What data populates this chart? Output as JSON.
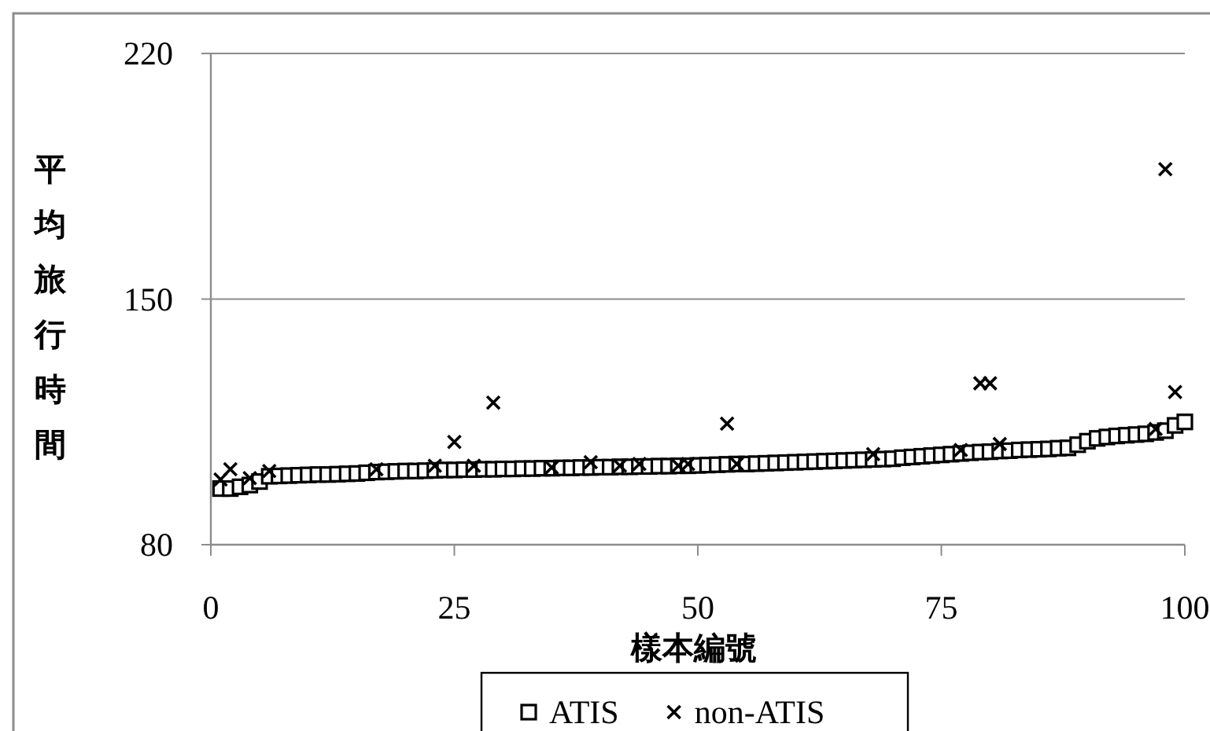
{
  "chart_data": {
    "type": "scatter",
    "xlabel": "樣本編號",
    "ylabel": "平均旅行時間",
    "xlim": [
      0,
      100
    ],
    "xticks": [
      0,
      25,
      50,
      75,
      100
    ],
    "ylim": [
      80,
      220
    ],
    "yticks": [
      80,
      150,
      220
    ],
    "grid": "y",
    "legend": "bottom",
    "series": [
      {
        "name": "ATIS",
        "color": "#000000",
        "marker": "square",
        "x": [
          1,
          2,
          3,
          4,
          5,
          6,
          7,
          8,
          9,
          10,
          11,
          12,
          13,
          14,
          15,
          16,
          17,
          18,
          19,
          20,
          21,
          22,
          23,
          24,
          25,
          26,
          27,
          28,
          29,
          30,
          31,
          32,
          33,
          34,
          35,
          36,
          37,
          38,
          39,
          40,
          41,
          42,
          43,
          44,
          45,
          46,
          47,
          48,
          49,
          50,
          51,
          52,
          53,
          54,
          55,
          56,
          57,
          58,
          59,
          60,
          61,
          62,
          63,
          64,
          65,
          66,
          67,
          68,
          69,
          70,
          71,
          72,
          73,
          74,
          75,
          76,
          77,
          78,
          79,
          80,
          81,
          82,
          83,
          84,
          85,
          86,
          87,
          88,
          89,
          90,
          91,
          92,
          93,
          94,
          95,
          96,
          97,
          98,
          99,
          100
        ],
        "values": [
          96,
          96,
          96.5,
          97,
          98,
          99.5,
          99.6,
          99.7,
          99.8,
          99.9,
          100,
          100,
          100.1,
          100.2,
          100.3,
          100.5,
          100.7,
          100.8,
          100.9,
          101,
          101,
          101.1,
          101.2,
          101.3,
          101.3,
          101.4,
          101.4,
          101.5,
          101.5,
          101.6,
          101.6,
          101.7,
          101.7,
          101.8,
          101.8,
          101.9,
          101.9,
          102,
          102,
          102.1,
          102.1,
          102.2,
          102.2,
          102.3,
          102.3,
          102.4,
          102.4,
          102.5,
          102.5,
          102.6,
          102.7,
          102.8,
          102.9,
          103,
          103,
          103.1,
          103.2,
          103.3,
          103.4,
          103.5,
          103.6,
          103.7,
          103.8,
          103.9,
          104,
          104.1,
          104.2,
          104.3,
          104.4,
          104.5,
          104.8,
          105,
          105.2,
          105.4,
          105.6,
          105.8,
          106,
          106.2,
          106.4,
          106.5,
          106.7,
          106.8,
          107,
          107.1,
          107.2,
          107.3,
          107.5,
          107.6,
          108.5,
          109.5,
          110.3,
          110.7,
          111,
          111.2,
          111.4,
          111.6,
          112,
          112.5,
          114,
          115
        ]
      },
      {
        "name": "non-ATIS",
        "color": "#000000",
        "marker": "cross",
        "x": [
          1,
          2,
          4,
          6,
          17,
          23,
          25,
          27,
          29,
          35,
          39,
          42,
          44,
          48,
          49,
          53,
          54,
          68,
          77,
          79,
          80,
          81,
          97,
          98,
          99
        ],
        "values": [
          98.6,
          101.5,
          99,
          101,
          101.5,
          102.5,
          109.3,
          102.5,
          120.5,
          102,
          103.5,
          102.5,
          103,
          102.5,
          103,
          114.5,
          103,
          105.8,
          107,
          126,
          126,
          108.7,
          113,
          187,
          123.5
        ]
      }
    ]
  }
}
